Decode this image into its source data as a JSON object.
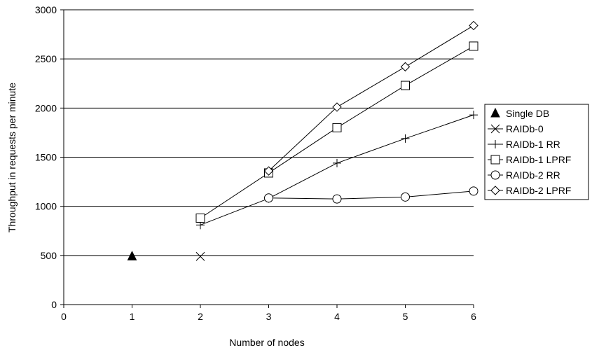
{
  "chart_data": {
    "type": "line",
    "xlabel": "Number of nodes",
    "ylabel": "Throughput in requests per minute",
    "xlim": [
      0,
      6
    ],
    "ylim": [
      0,
      3000
    ],
    "xticks": [
      0,
      1,
      2,
      3,
      4,
      5,
      6
    ],
    "yticks": [
      0,
      500,
      1000,
      1500,
      2000,
      2500,
      3000
    ],
    "grid": "horizontal",
    "legend_position": "right",
    "series": [
      {
        "name": "Single DB",
        "marker": "filled-triangle",
        "x": [
          1
        ],
        "y": [
          490
        ]
      },
      {
        "name": "RAIDb-0",
        "marker": "x",
        "x": [
          2
        ],
        "y": [
          490
        ]
      },
      {
        "name": "RAIDb-1 RR",
        "marker": "plus",
        "x": [
          2,
          3,
          4,
          5,
          6
        ],
        "y": [
          810,
          1080,
          1440,
          1690,
          1930
        ]
      },
      {
        "name": "RAIDb-1 LPRF",
        "marker": "square",
        "x": [
          2,
          3,
          4,
          5,
          6
        ],
        "y": [
          880,
          1340,
          1800,
          2230,
          2630
        ]
      },
      {
        "name": "RAIDb-2 RR",
        "marker": "circle",
        "x": [
          3,
          4,
          5,
          6
        ],
        "y": [
          1085,
          1075,
          1095,
          1155
        ]
      },
      {
        "name": "RAIDb-2 LPRF",
        "marker": "diamond",
        "x": [
          3,
          4,
          5,
          6
        ],
        "y": [
          1360,
          2010,
          2420,
          2840
        ]
      }
    ]
  }
}
